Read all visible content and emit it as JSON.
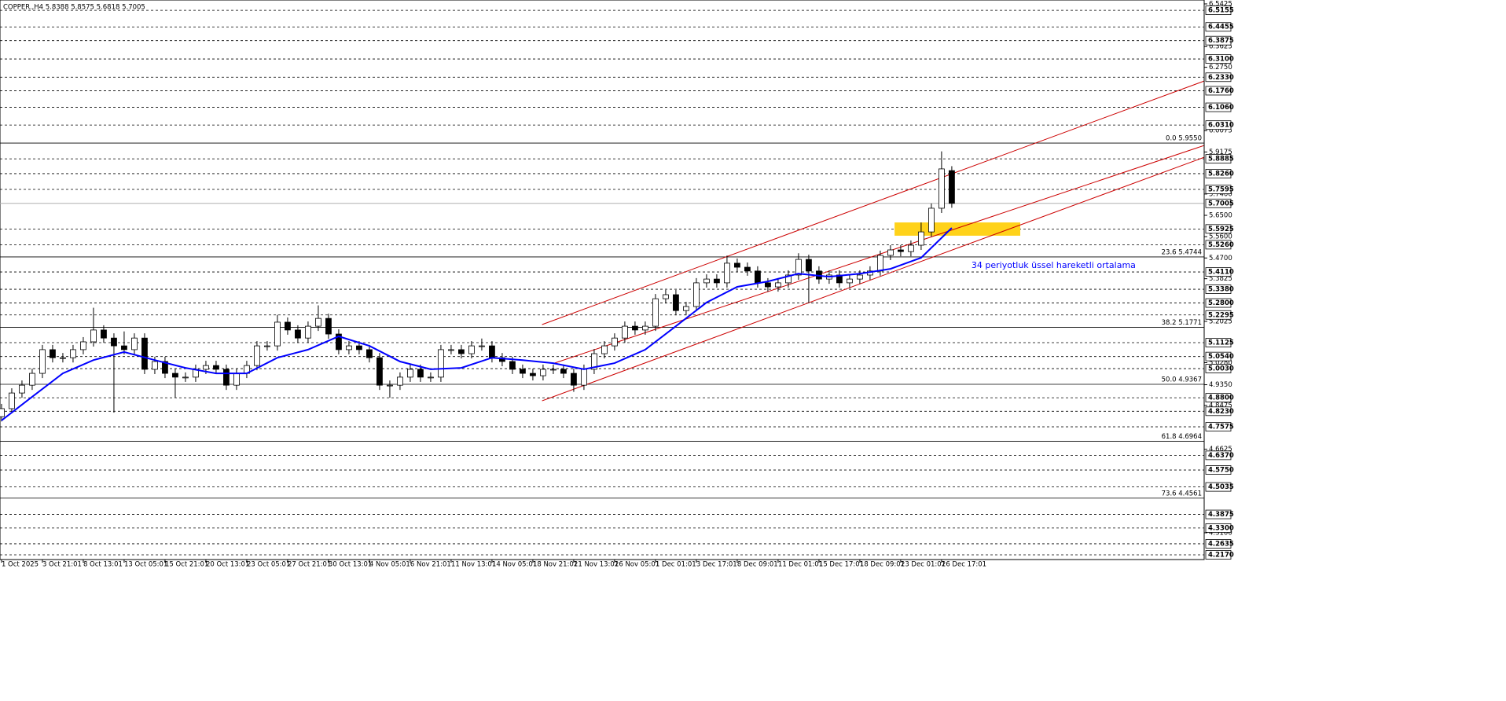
{
  "chart_data": {
    "type": "candlestick",
    "title": "COPPER.,H4  5.8388 5.8575 5.6818 5.7005",
    "x": [
      0,
      1,
      2,
      3,
      4,
      5,
      6,
      7,
      8,
      9,
      10,
      11,
      12,
      13,
      14,
      15,
      16,
      17,
      18,
      19,
      20,
      21,
      22,
      23,
      24,
      25,
      26,
      27,
      28,
      29,
      30,
      31,
      32,
      33,
      34,
      35,
      36,
      37,
      38,
      39,
      40,
      41,
      42,
      43,
      44,
      45,
      46,
      47,
      48,
      49,
      50,
      51,
      52,
      53,
      54,
      55,
      56,
      57,
      58,
      59,
      60,
      61,
      62,
      63,
      64,
      65,
      66,
      67,
      68,
      69,
      70,
      71,
      72,
      73,
      74,
      75,
      76,
      77,
      78,
      79,
      80,
      81,
      82,
      83,
      84,
      85,
      86,
      87,
      88,
      89,
      90,
      91,
      92,
      93
    ],
    "open": [
      4.8,
      4.834,
      4.9,
      4.933,
      4.983,
      5.083,
      5.049,
      5.049,
      5.083,
      5.116,
      5.166,
      5.132,
      5.099,
      5.083,
      5.132,
      5.0,
      5.033,
      4.983,
      4.967,
      4.967,
      5.0,
      5.016,
      5.0,
      4.933,
      4.983,
      5.016,
      5.099,
      5.099,
      5.199,
      5.166,
      5.132,
      5.182,
      5.215,
      5.149,
      5.083,
      5.099,
      5.083,
      5.049,
      4.933,
      4.933,
      4.967,
      5.0,
      4.967,
      4.967,
      5.083,
      5.083,
      5.066,
      5.099,
      5.099,
      5.049,
      5.033,
      5.0,
      4.983,
      4.973,
      5.0,
      5.0,
      4.983,
      4.933,
      5.0,
      5.066,
      5.099,
      5.132,
      5.182,
      5.166,
      5.182,
      5.298,
      5.315,
      5.248,
      5.265,
      5.365,
      5.381,
      5.365,
      5.448,
      5.431,
      5.415,
      5.365,
      5.348,
      5.365,
      5.398,
      5.464,
      5.415,
      5.381,
      5.398,
      5.365,
      5.381,
      5.398,
      5.415,
      5.481,
      5.504,
      5.497,
      5.524,
      5.58,
      5.68,
      5.8388
    ],
    "high": [
      4.854,
      4.92,
      4.953,
      5.003,
      5.103,
      5.103,
      5.069,
      5.103,
      5.136,
      5.26,
      5.186,
      5.152,
      5.16,
      5.152,
      5.152,
      5.053,
      5.053,
      5.003,
      4.987,
      5.02,
      5.036,
      5.036,
      5.02,
      5.003,
      5.036,
      5.119,
      5.119,
      5.23,
      5.219,
      5.186,
      5.202,
      5.27,
      5.235,
      5.169,
      5.119,
      5.119,
      5.103,
      5.069,
      4.953,
      4.987,
      5.02,
      5.02,
      4.987,
      5.103,
      5.103,
      5.103,
      5.119,
      5.13,
      5.119,
      5.069,
      5.053,
      5.02,
      5.003,
      5.02,
      5.02,
      5.02,
      5.003,
      5.02,
      5.086,
      5.119,
      5.152,
      5.202,
      5.202,
      5.202,
      5.318,
      5.335,
      5.335,
      5.285,
      5.385,
      5.401,
      5.401,
      5.48,
      5.468,
      5.451,
      5.435,
      5.385,
      5.385,
      5.418,
      5.49,
      5.484,
      5.435,
      5.418,
      5.418,
      5.401,
      5.418,
      5.435,
      5.501,
      5.524,
      5.524,
      5.544,
      5.62,
      5.7,
      5.92,
      5.8575
    ],
    "low": [
      4.78,
      4.814,
      4.88,
      4.913,
      4.963,
      5.029,
      5.029,
      5.029,
      5.063,
      5.096,
      5.112,
      4.817,
      5.063,
      5.063,
      4.98,
      4.98,
      4.963,
      4.88,
      4.947,
      4.947,
      4.98,
      4.98,
      4.913,
      4.913,
      4.963,
      4.996,
      5.079,
      5.079,
      5.146,
      5.112,
      5.112,
      5.162,
      5.129,
      5.063,
      5.063,
      5.063,
      5.029,
      4.913,
      4.88,
      4.913,
      4.947,
      4.947,
      4.947,
      4.947,
      5.063,
      5.046,
      5.046,
      5.079,
      5.029,
      5.013,
      4.98,
      4.963,
      4.953,
      4.953,
      4.98,
      4.963,
      4.905,
      4.913,
      4.98,
      5.046,
      5.079,
      5.112,
      5.146,
      5.146,
      5.162,
      5.278,
      5.228,
      5.228,
      5.245,
      5.345,
      5.345,
      5.345,
      5.411,
      5.395,
      5.345,
      5.328,
      5.328,
      5.345,
      5.378,
      5.28,
      5.361,
      5.361,
      5.345,
      5.345,
      5.361,
      5.378,
      5.395,
      5.461,
      5.477,
      5.477,
      5.504,
      5.56,
      5.66,
      5.6818
    ],
    "close": [
      4.834,
      4.9,
      4.933,
      4.983,
      5.083,
      5.049,
      5.049,
      5.083,
      5.116,
      5.166,
      5.132,
      5.099,
      5.083,
      5.132,
      5.0,
      5.033,
      4.983,
      4.967,
      4.967,
      5.0,
      5.016,
      5.0,
      4.933,
      4.983,
      5.016,
      5.099,
      5.099,
      5.199,
      5.166,
      5.132,
      5.182,
      5.215,
      5.149,
      5.083,
      5.099,
      5.083,
      5.049,
      4.933,
      4.933,
      4.967,
      5.0,
      4.967,
      4.967,
      5.083,
      5.083,
      5.066,
      5.099,
      5.099,
      5.049,
      5.033,
      5.0,
      4.983,
      4.973,
      5.0,
      5.0,
      4.983,
      4.933,
      5.0,
      5.066,
      5.099,
      5.132,
      5.182,
      5.166,
      5.182,
      5.298,
      5.315,
      5.248,
      5.265,
      5.365,
      5.381,
      5.365,
      5.448,
      5.431,
      5.415,
      5.365,
      5.348,
      5.365,
      5.398,
      5.464,
      5.415,
      5.381,
      5.398,
      5.365,
      5.381,
      5.398,
      5.415,
      5.481,
      5.504,
      5.497,
      5.524,
      5.58,
      5.68,
      5.846,
      5.7005
    ],
    "xlim": [
      -0.15,
      117.7
    ],
    "ylim": [
      4.197,
      6.559
    ],
    "xticks": [
      {
        "value": 0,
        "label": "1 Oct 2025"
      },
      {
        "value": 4,
        "label": "3 Oct 21:01"
      },
      {
        "value": 8,
        "label": "8 Oct 13:01"
      },
      {
        "value": 12,
        "label": "13 Oct 05:01"
      },
      {
        "value": 16,
        "label": "15 Oct 21:01"
      },
      {
        "value": 20,
        "label": "20 Oct 13:01"
      },
      {
        "value": 24,
        "label": "23 Oct 05:01"
      },
      {
        "value": 28,
        "label": "27 Oct 21:01"
      },
      {
        "value": 32,
        "label": "30 Oct 13:01"
      },
      {
        "value": 36,
        "label": "4 Nov 05:01"
      },
      {
        "value": 40,
        "label": "6 Nov 21:01"
      },
      {
        "value": 44,
        "label": "11 Nov 13:01"
      },
      {
        "value": 48,
        "label": "14 Nov 05:01"
      },
      {
        "value": 52,
        "label": "18 Nov 21:01"
      },
      {
        "value": 56,
        "label": "21 Nov 13:01"
      },
      {
        "value": 60,
        "label": "26 Nov 05:01"
      },
      {
        "value": 64,
        "label": "1 Dec 01:01"
      },
      {
        "value": 68,
        "label": "3 Dec 17:01"
      },
      {
        "value": 72,
        "label": "8 Dec 09:01"
      },
      {
        "value": 76,
        "label": "11 Dec 01:01"
      },
      {
        "value": 80,
        "label": "15 Dec 17:01"
      },
      {
        "value": 84,
        "label": "18 Dec 09:01"
      },
      {
        "value": 88,
        "label": "23 Dec 01:01"
      },
      {
        "value": 92,
        "label": "26 Dec 17:01"
      }
    ],
    "yticks": [
      6.5425,
      6.3625,
      {
        "value": 6.275,
        "label": "6.2750"
      },
      6.0075,
      5.9175,
      {
        "value": 5.74,
        "label": "5.7400"
      },
      {
        "value": 5.65,
        "label": "5.6500"
      },
      {
        "value": 5.56,
        "label": "5.5600"
      },
      {
        "value": 5.47,
        "label": "5.4700"
      },
      5.3825,
      5.2025,
      {
        "value": 5.028,
        "label": "5.0280"
      },
      {
        "value": 4.935,
        "label": "4.9350"
      },
      4.8475,
      4.6625,
      {
        "value": 4.31,
        "label": "4.3100"
      }
    ],
    "levels": [
      6.5155,
      6.4455,
      6.3875,
      {
        "value": 6.31,
        "label": "6.3100"
      },
      {
        "value": 6.233,
        "label": "6.2330"
      },
      {
        "value": 6.176,
        "label": "6.1760"
      },
      {
        "value": 6.106,
        "label": "6.1060"
      },
      {
        "value": 6.031,
        "label": "6.0310"
      },
      5.8885,
      {
        "value": 5.826,
        "label": "5.8260"
      },
      5.7595,
      5.5925,
      {
        "value": 5.526,
        "label": "5.5260"
      },
      {
        "value": 5.411,
        "label": "5.4110"
      },
      {
        "value": 5.338,
        "label": "5.3380"
      },
      {
        "value": 5.28,
        "label": "5.2800"
      },
      5.2295,
      5.1125,
      {
        "value": 5.054,
        "label": "5.0540"
      },
      {
        "value": 5.003,
        "label": "5.0030"
      },
      {
        "value": 4.88,
        "label": "4.8800"
      },
      {
        "value": 4.823,
        "label": "4.8230"
      },
      4.7575,
      {
        "value": 4.637,
        "label": "4.6370"
      },
      {
        "value": 4.575,
        "label": "4.5750"
      },
      4.5035,
      4.3875,
      {
        "value": 4.33,
        "label": "4.3300"
      },
      4.2635,
      {
        "value": 4.217,
        "label": "4.2170"
      }
    ],
    "current_price": 5.7005,
    "fib_levels": [
      {
        "value": 5.955,
        "label": "0.0 5.9550"
      },
      {
        "value": 5.4744,
        "label": "23.6 5.4744"
      },
      {
        "value": 5.1771,
        "label": "38.2 5.1771"
      },
      {
        "value": 4.9367,
        "label": "50.0 4.9367"
      },
      {
        "value": 4.6964,
        "label": "61.8 4.6964"
      },
      {
        "value": 4.4561,
        "label": "73.6 4.4561"
      }
    ],
    "ema": {
      "name": "34 periyotluk üssel hareketli ortalama",
      "color": "#0000ff",
      "x": [
        0,
        3,
        6,
        9,
        12,
        15,
        18,
        21,
        24,
        27,
        30,
        33,
        36,
        39,
        42,
        45,
        48,
        51,
        54,
        57,
        60,
        63,
        66,
        69,
        72,
        75,
        78,
        81,
        84,
        87,
        90,
        93
      ],
      "values": [
        4.784,
        4.884,
        4.983,
        5.039,
        5.073,
        5.039,
        5.006,
        4.983,
        4.983,
        5.049,
        5.083,
        5.139,
        5.099,
        5.033,
        5.0,
        5.006,
        5.049,
        5.039,
        5.026,
        5.0,
        5.026,
        5.083,
        5.182,
        5.282,
        5.348,
        5.371,
        5.404,
        5.391,
        5.404,
        5.424,
        5.471,
        5.597
      ]
    },
    "trendlines": [
      {
        "x": [
          52.9,
          117.7
        ],
        "y": [
          5.189,
          6.217
        ]
      },
      {
        "x": [
          54.1,
          117.7
        ],
        "y": [
          5.026,
          5.945
        ]
      },
      {
        "x": [
          52.9,
          117.7
        ],
        "y": [
          4.867,
          5.895
        ]
      }
    ],
    "trendline_color": "#cc0000",
    "zone": {
      "x": [
        87.4,
        99.7
      ],
      "y": [
        5.564,
        5.62
      ],
      "color": "#ffd21a"
    },
    "up_color": "#ffffff",
    "down_color": "#000000"
  }
}
